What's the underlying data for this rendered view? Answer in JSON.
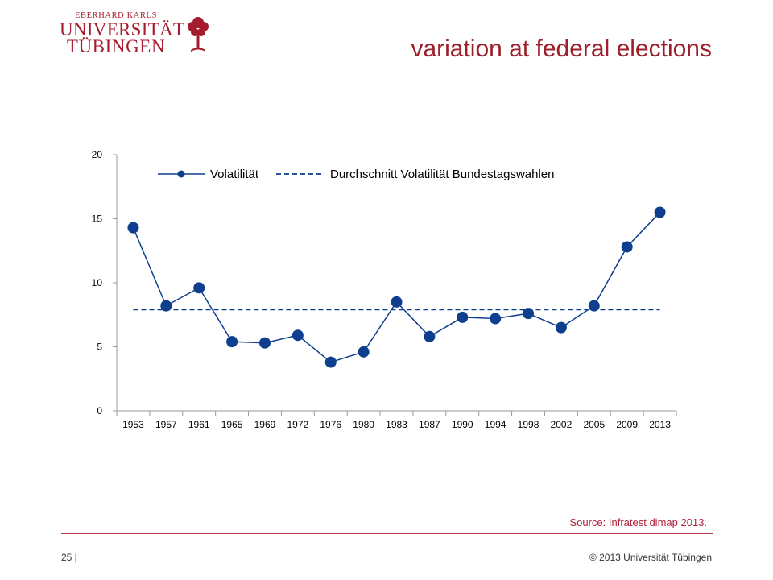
{
  "header": {
    "logo_line1": "EBERHARD KARLS",
    "logo_line2": "UNIVERSITÄT",
    "logo_line3": "TÜBINGEN",
    "title": "variation at federal elections"
  },
  "footer": {
    "source": "Source: Infratest dimap 2013.",
    "page": "25 |",
    "copyright": "© 2013 Universität Tübingen"
  },
  "colors": {
    "brand": "#a51d2d",
    "series": "#0e3f8e"
  },
  "chart_data": {
    "type": "line",
    "categories": [
      "1953",
      "1957",
      "1961",
      "1965",
      "1969",
      "1972",
      "1976",
      "1980",
      "1983",
      "1987",
      "1990",
      "1994",
      "1998",
      "2002",
      "2005",
      "2009",
      "2013"
    ],
    "series": [
      {
        "name": "Volatilität",
        "style": "solid-with-markers",
        "values": [
          14.3,
          8.2,
          9.6,
          5.4,
          5.3,
          5.9,
          3.8,
          4.6,
          8.5,
          5.8,
          7.3,
          7.2,
          7.6,
          6.5,
          8.2,
          12.8,
          15.5
        ]
      },
      {
        "name": "Durchschnitt Volatilität Bundestagswahlen",
        "style": "dashed",
        "values": [
          7.9,
          7.9,
          7.9,
          7.9,
          7.9,
          7.9,
          7.9,
          7.9,
          7.9,
          7.9,
          7.9,
          7.9,
          7.9,
          7.9,
          7.9,
          7.9,
          7.9
        ]
      }
    ],
    "yticks": [
      0,
      5,
      10,
      15,
      20
    ],
    "ylim": [
      0,
      20
    ],
    "title": "",
    "xlabel": "",
    "ylabel": "",
    "legend_position": "top-left",
    "grid": false
  }
}
